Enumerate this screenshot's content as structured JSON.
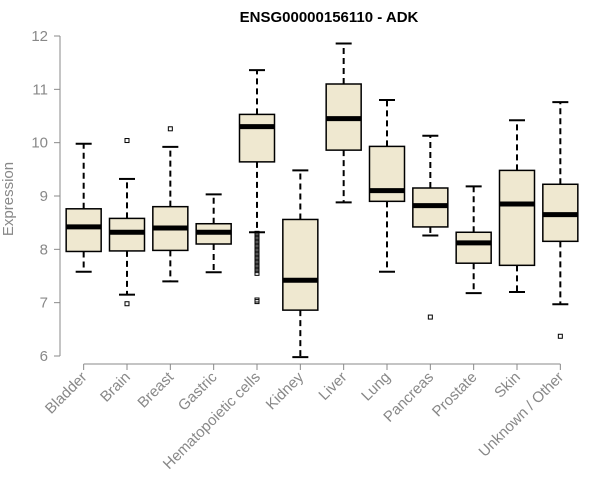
{
  "chart_data": {
    "type": "boxplot",
    "title": "ENSG00000156110 - ADK",
    "xlabel": "",
    "ylabel": "Expression",
    "ylim": [
      6,
      12
    ],
    "yticks": [
      6,
      7,
      8,
      9,
      10,
      11,
      12
    ],
    "box_fill": "#efe8d0",
    "stroke": "#000000",
    "axis_color": "#888888",
    "categories": [
      "Bladder",
      "Brain",
      "Breast",
      "Gastric",
      "Hematopoietic cells",
      "Kidney",
      "Liver",
      "Lung",
      "Pancreas",
      "Prostate",
      "Skin",
      "Unknown / Other"
    ],
    "boxes": [
      {
        "category": "Bladder",
        "min": 7.58,
        "q1": 7.96,
        "median": 8.42,
        "q3": 8.76,
        "max": 9.98,
        "outliers": []
      },
      {
        "category": "Brain",
        "min": 7.15,
        "q1": 7.97,
        "median": 8.32,
        "q3": 8.58,
        "max": 9.32,
        "outliers": [
          6.98,
          10.04
        ]
      },
      {
        "category": "Breast",
        "min": 7.4,
        "q1": 7.98,
        "median": 8.4,
        "q3": 8.8,
        "max": 9.92,
        "outliers": [
          10.26
        ]
      },
      {
        "category": "Gastric",
        "min": 7.57,
        "q1": 8.1,
        "median": 8.32,
        "q3": 8.48,
        "max": 9.03,
        "outliers": []
      },
      {
        "category": "Hematopoietic cells",
        "min": 8.32,
        "q1": 9.64,
        "median": 10.3,
        "q3": 10.53,
        "max": 11.36,
        "outliers": [
          8.3,
          8.25,
          8.2,
          8.15,
          8.1,
          8.05,
          8.0,
          7.95,
          7.9,
          7.85,
          7.8,
          7.75,
          7.7,
          7.65,
          7.6,
          7.55,
          7.05,
          7.02
        ]
      },
      {
        "category": "Kidney",
        "min": 5.98,
        "q1": 6.86,
        "median": 7.42,
        "q3": 8.56,
        "max": 9.48,
        "outliers": []
      },
      {
        "category": "Liver",
        "min": 8.88,
        "q1": 9.86,
        "median": 10.45,
        "q3": 11.1,
        "max": 11.86,
        "outliers": []
      },
      {
        "category": "Lung",
        "min": 7.58,
        "q1": 8.9,
        "median": 9.1,
        "q3": 9.93,
        "max": 10.8,
        "outliers": []
      },
      {
        "category": "Pancreas",
        "min": 8.26,
        "q1": 8.42,
        "median": 8.82,
        "q3": 9.15,
        "max": 10.13,
        "outliers": [
          6.73
        ]
      },
      {
        "category": "Prostate",
        "min": 7.18,
        "q1": 7.74,
        "median": 8.12,
        "q3": 8.32,
        "max": 9.18,
        "outliers": []
      },
      {
        "category": "Skin",
        "min": 7.2,
        "q1": 7.7,
        "median": 8.85,
        "q3": 9.48,
        "max": 10.42,
        "outliers": []
      },
      {
        "category": "Unknown / Other",
        "min": 6.97,
        "q1": 8.15,
        "median": 8.65,
        "q3": 9.22,
        "max": 10.76,
        "outliers": [
          6.37
        ]
      }
    ]
  }
}
